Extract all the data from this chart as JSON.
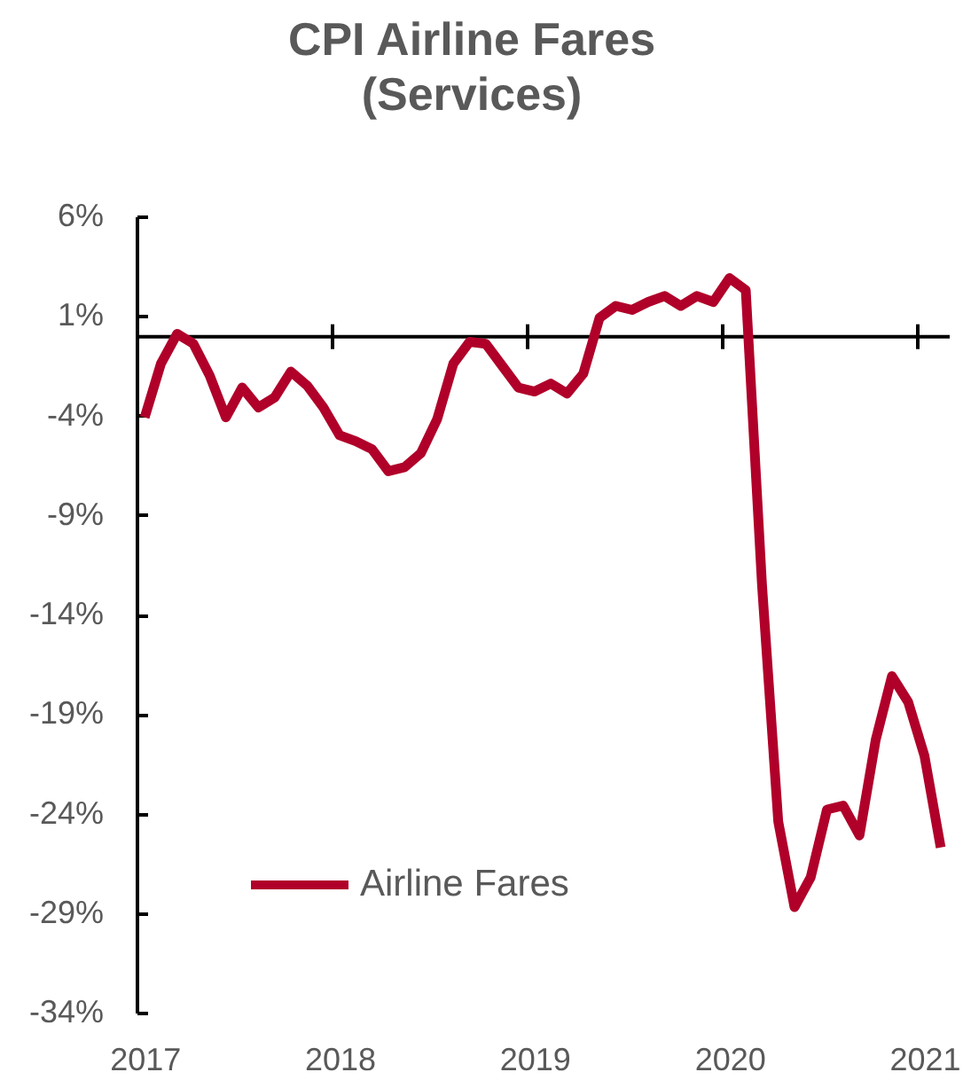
{
  "chart_data": {
    "type": "line",
    "title": "CPI Airline Fares (Services)",
    "categories": [
      "2017",
      null,
      null,
      null,
      null,
      null,
      null,
      null,
      null,
      null,
      null,
      null,
      "2018",
      null,
      null,
      null,
      null,
      null,
      null,
      null,
      null,
      null,
      null,
      null,
      "2019",
      null,
      null,
      null,
      null,
      null,
      null,
      null,
      null,
      null,
      null,
      null,
      "2020",
      null,
      null,
      null,
      null,
      null,
      null,
      null,
      null,
      null,
      null,
      null,
      "2021",
      null
    ],
    "series": [
      {
        "name": "Airline Fares",
        "color": "#b0002a",
        "values": [
          -4.1,
          -1.4,
          0.1,
          -0.4,
          -2.0,
          -4.1,
          -2.6,
          -3.6,
          -3.1,
          -1.8,
          -2.5,
          -3.6,
          -5.0,
          -5.3,
          -5.7,
          -6.8,
          -6.6,
          -5.9,
          -4.2,
          -1.4,
          -0.3,
          -0.4,
          -1.5,
          -2.6,
          -2.8,
          -2.4,
          -2.9,
          -1.9,
          0.9,
          1.5,
          1.3,
          1.7,
          2.0,
          1.5,
          2.0,
          1.7,
          2.9,
          2.3,
          -12.5,
          -24.4,
          -28.7,
          -27.2,
          -23.8,
          -23.6,
          -25.1,
          -20.3,
          -17.1,
          -18.4,
          -21.1,
          -25.7
        ]
      }
    ],
    "ylim": [
      -34,
      6
    ],
    "yticks": [
      {
        "value": 6,
        "label": "6%"
      },
      {
        "value": 1,
        "label": "1%"
      },
      {
        "value": -4,
        "label": "-4%"
      },
      {
        "value": -9,
        "label": "-9%"
      },
      {
        "value": -14,
        "label": "-14%"
      },
      {
        "value": -19,
        "label": "-19%"
      },
      {
        "value": -24,
        "label": "-24%"
      },
      {
        "value": -29,
        "label": "-29%"
      },
      {
        "value": -34,
        "label": "-34%"
      }
    ],
    "legend": "bottom left",
    "line_style": "solid"
  }
}
